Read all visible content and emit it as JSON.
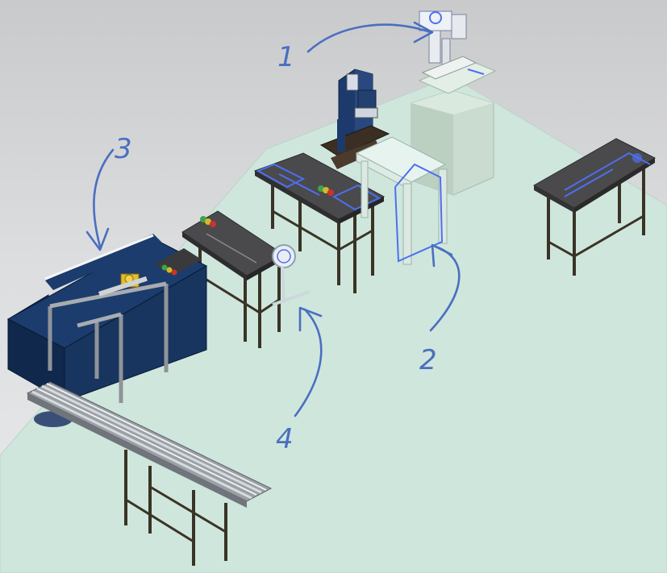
{
  "annotations": [
    {
      "id": "1",
      "label": "1"
    },
    {
      "id": "2",
      "label": "2"
    },
    {
      "id": "3",
      "label": "3"
    },
    {
      "id": "4",
      "label": "4"
    }
  ],
  "colors": {
    "floor": "#cfe6dc",
    "table_top": "#4a4a4c",
    "table_legs": "#3a3426",
    "annotation_ink": "#4a6fc0",
    "cabinet": "#1c3a66",
    "highlight": "#4d6ff0"
  }
}
